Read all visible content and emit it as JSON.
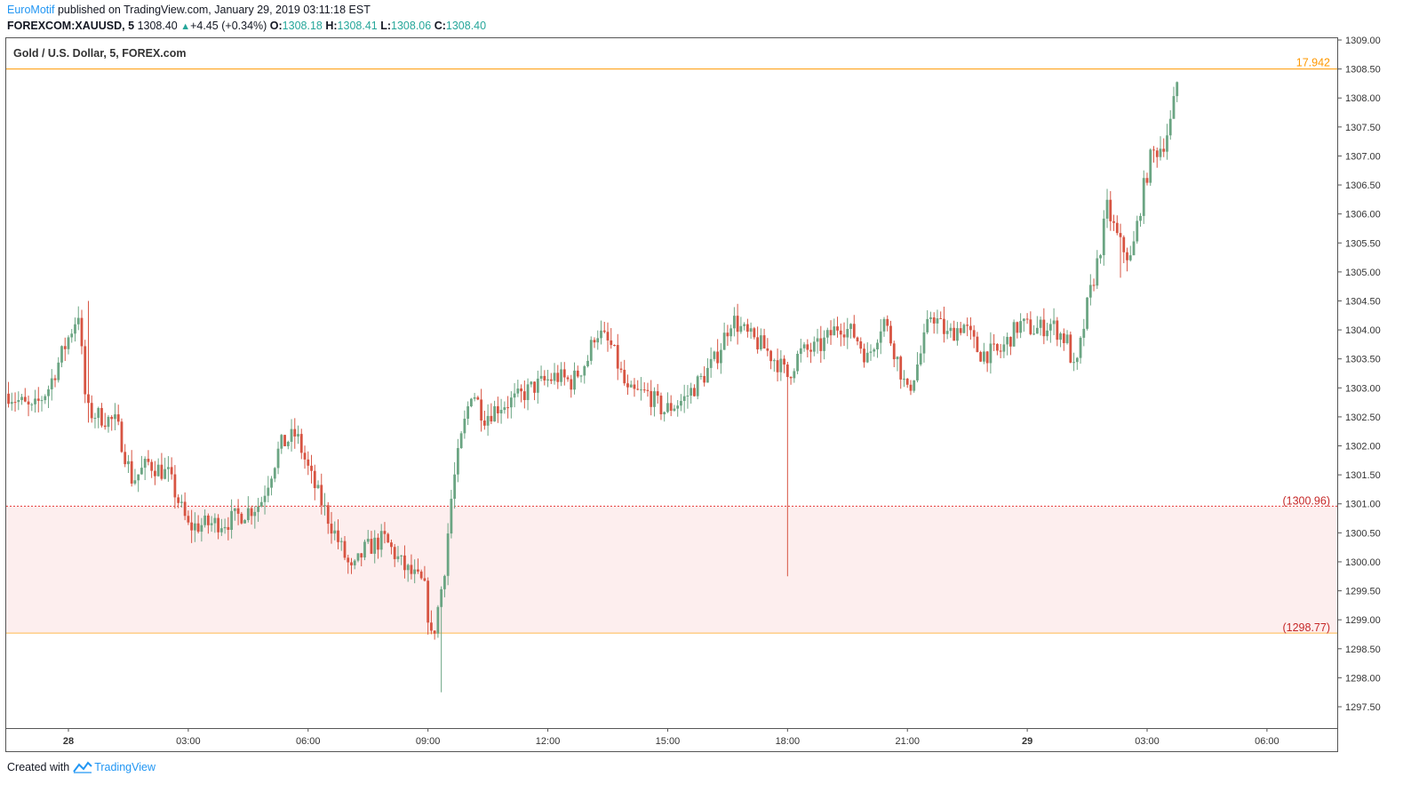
{
  "header": {
    "author": "EuroMotif",
    "published_text": "published on TradingView.com, January 29, 2019 03:11:18 EST",
    "symbol": "FOREXCOM:XAUUSD, 5",
    "last": "1308.40",
    "change": "+4.45 (+0.34%)",
    "o_label": "O:",
    "o_val": "1308.18",
    "h_label": "H:",
    "h_val": "1308.41",
    "l_label": "L:",
    "l_val": "1308.06",
    "c_label": "C:",
    "c_val": "1308.40"
  },
  "footer": {
    "created_with": "Created with",
    "brand": "TradingView"
  },
  "chart_data": {
    "type": "candlestick",
    "title": "Gold / U.S. Dollar, 5, FOREX.com",
    "ylim": [
      1297.2,
      1309.1
    ],
    "y_ticks": [
      "1309.00",
      "1308.50",
      "1308.00",
      "1307.50",
      "1307.00",
      "1306.50",
      "1306.00",
      "1305.50",
      "1305.00",
      "1304.50",
      "1304.00",
      "1303.50",
      "1303.00",
      "1302.50",
      "1302.00",
      "1301.50",
      "1301.00",
      "1300.50",
      "1300.00",
      "1299.50",
      "1299.00",
      "1298.50",
      "1298.00",
      "1297.50"
    ],
    "x_ticks": [
      "28",
      "03:00",
      "06:00",
      "09:00",
      "12:00",
      "15:00",
      "18:00",
      "21:00",
      "29",
      "03:00",
      "06:00"
    ],
    "x_tick_hours": [
      0,
      3,
      6,
      9,
      12,
      15,
      18,
      21,
      24,
      27,
      30
    ],
    "x_range_hours": [
      -1.5,
      30.5
    ],
    "horizontal_line": {
      "value": 1308.5,
      "label": "17.942",
      "color": "#ff9800"
    },
    "zone": {
      "upper": 1300.96,
      "lower": 1298.77,
      "upper_label": "(1300.96)",
      "lower_label": "(1298.77)",
      "color": "#ef5350"
    },
    "colors": {
      "up": "#6ba583",
      "down": "#d75442"
    },
    "keypoints": [
      [
        -1.5,
        1302.9
      ],
      [
        -0.9,
        1302.6
      ],
      [
        -0.5,
        1303.0
      ],
      [
        0.25,
        1304.3
      ],
      [
        0.45,
        1302.6
      ],
      [
        1.2,
        1302.4
      ],
      [
        1.6,
        1301.4
      ],
      [
        2.0,
        1301.7
      ],
      [
        2.5,
        1301.5
      ],
      [
        3.0,
        1300.6
      ],
      [
        4.0,
        1300.7
      ],
      [
        4.8,
        1301.0
      ],
      [
        5.3,
        1302.0
      ],
      [
        5.7,
        1302.2
      ],
      [
        6.1,
        1301.4
      ],
      [
        6.6,
        1300.6
      ],
      [
        7.1,
        1299.8
      ],
      [
        7.4,
        1300.2
      ],
      [
        7.9,
        1300.4
      ],
      [
        8.4,
        1299.9
      ],
      [
        8.9,
        1299.6
      ],
      [
        9.1,
        1298.6
      ],
      [
        9.4,
        1299.8
      ],
      [
        9.6,
        1301.2
      ],
      [
        9.8,
        1302.0
      ],
      [
        10.1,
        1303.0
      ],
      [
        10.4,
        1302.5
      ],
      [
        10.8,
        1302.7
      ],
      [
        11.2,
        1302.8
      ],
      [
        11.6,
        1303.0
      ],
      [
        12.2,
        1303.2
      ],
      [
        12.6,
        1303.1
      ],
      [
        13.0,
        1303.5
      ],
      [
        13.2,
        1304.0
      ],
      [
        13.6,
        1303.7
      ],
      [
        14.0,
        1302.9
      ],
      [
        14.5,
        1302.9
      ],
      [
        14.9,
        1302.6
      ],
      [
        15.4,
        1302.8
      ],
      [
        15.9,
        1303.2
      ],
      [
        16.2,
        1303.5
      ],
      [
        16.6,
        1304.2
      ],
      [
        17.0,
        1303.9
      ],
      [
        17.4,
        1303.7
      ],
      [
        17.8,
        1303.4
      ],
      [
        18.0,
        1303.2
      ],
      [
        18.3,
        1303.6
      ],
      [
        18.8,
        1303.7
      ],
      [
        19.3,
        1304.1
      ],
      [
        19.7,
        1303.9
      ],
      [
        20.0,
        1303.5
      ],
      [
        20.4,
        1304.2
      ],
      [
        20.7,
        1303.6
      ],
      [
        21.0,
        1302.9
      ],
      [
        21.3,
        1303.5
      ],
      [
        21.6,
        1304.3
      ],
      [
        22.0,
        1303.9
      ],
      [
        22.4,
        1304.1
      ],
      [
        22.8,
        1303.6
      ],
      [
        23.3,
        1303.6
      ],
      [
        23.8,
        1304.1
      ],
      [
        24.2,
        1304.0
      ],
      [
        24.6,
        1304.1
      ],
      [
        25.0,
        1303.8
      ],
      [
        25.2,
        1303.2
      ],
      [
        25.5,
        1304.4
      ],
      [
        25.8,
        1305.3
      ],
      [
        26.0,
        1306.1
      ],
      [
        26.3,
        1305.5
      ],
      [
        26.6,
        1305.2
      ],
      [
        26.9,
        1306.4
      ],
      [
        27.1,
        1307.0
      ],
      [
        27.4,
        1307.2
      ],
      [
        27.6,
        1307.6
      ],
      [
        27.78,
        1308.4
      ]
    ],
    "spikes": [
      {
        "hour": 18.0,
        "low": 1299.75,
        "high": 1303.45
      },
      {
        "hour": 9.3,
        "low": 1297.75,
        "high": 1298.8
      },
      {
        "hour": 0.5,
        "low": 1302.4,
        "high": 1304.5
      },
      {
        "hour": 26.3,
        "low": 1304.9,
        "high": 1305.6
      }
    ]
  }
}
